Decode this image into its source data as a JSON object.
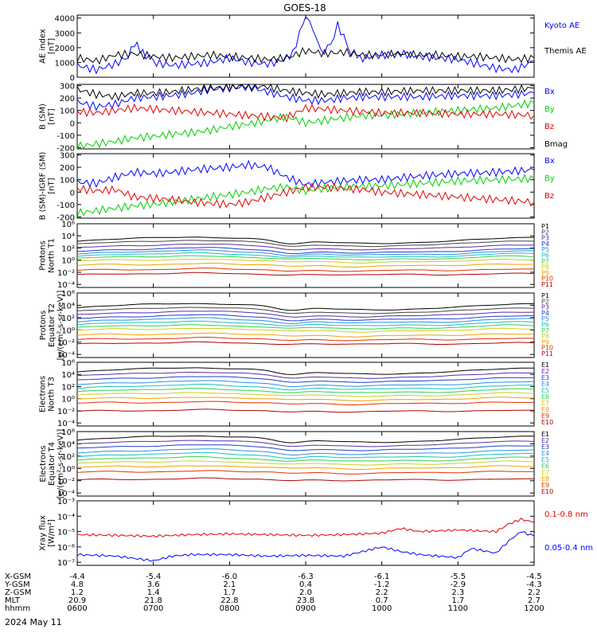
{
  "title": "GOES-18",
  "date_label": "2024 May 11",
  "colors": {
    "black": "#000000",
    "blue": "#0000ff",
    "green": "#00cc00",
    "red": "#e00000"
  },
  "chart_data": [
    {
      "type": "line",
      "ylabel": [
        "AE index",
        "[nT]"
      ],
      "yticks": [
        "0",
        "1000",
        "2000",
        "3000",
        "4000"
      ],
      "ylim": [
        0,
        4200
      ],
      "series": [
        {
          "name": "Kyoto AE",
          "color": "#0000ff",
          "x": [
            6.0,
            6.25,
            6.5,
            6.67,
            6.75,
            6.9,
            7.0,
            7.25,
            7.5,
            7.75,
            8.0,
            8.25,
            8.5,
            8.67,
            8.83,
            8.92,
            9.0,
            9.1,
            9.2,
            9.33,
            9.42,
            9.5,
            9.6,
            9.75,
            10.0,
            10.25,
            10.5,
            10.75,
            11.0,
            11.25,
            11.5,
            11.75,
            12.0
          ],
          "y": [
            800,
            500,
            900,
            1400,
            2300,
            1500,
            1000,
            800,
            900,
            1000,
            1300,
            1000,
            900,
            1100,
            1600,
            3000,
            4100,
            3300,
            1600,
            2200,
            3500,
            2700,
            1700,
            1300,
            1500,
            1600,
            1400,
            1300,
            1200,
            900,
            600,
            500,
            1100
          ]
        },
        {
          "name": "Themis AE",
          "color": "#000000",
          "x": [
            6.0,
            6.25,
            6.5,
            6.75,
            7.0,
            7.25,
            7.5,
            7.75,
            8.0,
            8.25,
            8.5,
            8.75,
            9.0,
            9.25,
            9.5,
            9.75,
            10.0,
            10.25,
            10.5,
            10.75,
            11.0,
            11.25,
            11.5,
            11.75,
            12.0
          ],
          "y": [
            1300,
            1100,
            1500,
            1600,
            1400,
            1300,
            1400,
            1500,
            1400,
            1300,
            1200,
            1300,
            1800,
            1600,
            1700,
            1500,
            1500,
            1600,
            1500,
            1500,
            1400,
            1400,
            1300,
            1200,
            1300
          ]
        }
      ]
    },
    {
      "type": "line",
      "ylabel": [
        "B (SM)",
        "[nT]"
      ],
      "yticks": [
        "-200",
        "-100",
        "0",
        "100",
        "200",
        "300"
      ],
      "ylim": [
        -210,
        310
      ],
      "series": [
        {
          "name": "Bx",
          "color": "#0000ff",
          "x": [
            6.0,
            6.25,
            6.5,
            6.75,
            7.0,
            7.25,
            7.5,
            7.75,
            8.0,
            8.25,
            8.5,
            8.75,
            9.0,
            9.25,
            9.5,
            9.75,
            10.0,
            10.5,
            11.0,
            11.5,
            12.0
          ],
          "y": [
            170,
            130,
            150,
            200,
            210,
            220,
            240,
            270,
            280,
            290,
            250,
            210,
            180,
            180,
            200,
            210,
            210,
            210,
            220,
            220,
            240
          ]
        },
        {
          "name": "By",
          "color": "#00cc00",
          "x": [
            6.0,
            6.25,
            6.5,
            6.75,
            7.0,
            7.25,
            7.5,
            7.75,
            8.0,
            8.25,
            8.5,
            8.75,
            9.0,
            9.25,
            9.5,
            9.75,
            10.0,
            10.5,
            11.0,
            11.5,
            12.0
          ],
          "y": [
            -190,
            -170,
            -150,
            -120,
            -110,
            -90,
            -80,
            -60,
            -30,
            -10,
            20,
            50,
            0,
            20,
            40,
            60,
            60,
            80,
            100,
            120,
            160
          ]
        },
        {
          "name": "Bz",
          "color": "#e00000",
          "x": [
            6.0,
            6.25,
            6.5,
            6.75,
            7.0,
            7.25,
            7.5,
            7.75,
            8.0,
            8.25,
            8.5,
            8.75,
            9.0,
            9.25,
            9.5,
            9.75,
            10.0,
            10.5,
            11.0,
            11.5,
            12.0
          ],
          "y": [
            90,
            80,
            100,
            120,
            110,
            100,
            90,
            80,
            70,
            60,
            50,
            40,
            120,
            110,
            100,
            90,
            80,
            80,
            70,
            70,
            60
          ]
        },
        {
          "name": "Bmag",
          "color": "#000000",
          "x": [
            6.0,
            6.25,
            6.5,
            6.75,
            7.0,
            7.25,
            7.5,
            7.75,
            8.0,
            8.25,
            8.5,
            8.75,
            9.0,
            9.25,
            9.5,
            9.75,
            10.0,
            10.5,
            11.0,
            11.5,
            12.0
          ],
          "y": [
            270,
            230,
            210,
            240,
            240,
            250,
            270,
            280,
            290,
            300,
            290,
            260,
            240,
            230,
            240,
            250,
            250,
            260,
            260,
            260,
            280
          ]
        }
      ]
    },
    {
      "type": "line",
      "ylabel": [
        "B (SM)-IGRF (SM)",
        "[nT]"
      ],
      "yticks": [
        "-200",
        "-100",
        "0",
        "100",
        "200",
        "300"
      ],
      "ylim": [
        -210,
        310
      ],
      "series": [
        {
          "name": "Bx",
          "color": "#0000ff",
          "x": [
            6.0,
            6.25,
            6.5,
            6.75,
            7.0,
            7.25,
            7.5,
            7.75,
            8.0,
            8.25,
            8.5,
            8.75,
            9.0,
            9.25,
            9.5,
            9.75,
            10.0,
            10.5,
            11.0,
            11.5,
            12.0
          ],
          "y": [
            80,
            70,
            120,
            160,
            150,
            160,
            180,
            190,
            200,
            220,
            200,
            120,
            60,
            80,
            90,
            100,
            100,
            130,
            150,
            160,
            180
          ]
        },
        {
          "name": "By",
          "color": "#00cc00",
          "x": [
            6.0,
            6.25,
            6.5,
            6.75,
            7.0,
            7.25,
            7.5,
            7.75,
            8.0,
            8.25,
            8.5,
            8.75,
            9.0,
            9.25,
            9.5,
            9.75,
            10.0,
            10.5,
            11.0,
            11.5,
            12.0
          ],
          "y": [
            -170,
            -150,
            -130,
            -110,
            -100,
            -80,
            -60,
            -40,
            -20,
            0,
            30,
            40,
            10,
            30,
            40,
            50,
            50,
            70,
            90,
            100,
            110
          ]
        },
        {
          "name": "Bz",
          "color": "#e00000",
          "x": [
            6.0,
            6.25,
            6.5,
            6.75,
            7.0,
            7.25,
            7.5,
            7.75,
            8.0,
            8.25,
            8.5,
            8.75,
            9.0,
            9.25,
            9.5,
            9.75,
            10.0,
            10.5,
            11.0,
            11.5,
            12.0
          ],
          "y": [
            30,
            10,
            20,
            -40,
            -50,
            -60,
            -80,
            -90,
            -100,
            -80,
            -40,
            0,
            40,
            40,
            30,
            20,
            0,
            -20,
            -40,
            -60,
            -80
          ]
        }
      ]
    },
    {
      "type": "line",
      "log": true,
      "ylabel": [
        "Protons",
        "North T1"
      ],
      "yticks": [
        "10⁻⁴",
        "10⁻²",
        "10⁰",
        "10²",
        "10⁴",
        "10⁶"
      ],
      "ylim_exp": [
        -4.5,
        6
      ],
      "series": [
        {
          "name": "P1",
          "color": "#000000",
          "level": 3.3
        },
        {
          "name": "P2",
          "color": "#444444",
          "level": 2.8
        },
        {
          "name": "P3",
          "color": "#5a2ea0",
          "level": 2.2
        },
        {
          "name": "P4",
          "color": "#1a3ecc",
          "level": 1.6
        },
        {
          "name": "P5",
          "color": "#2a8fe0",
          "level": 1.2
        },
        {
          "name": "P6",
          "color": "#18c0c0",
          "level": 0.8
        },
        {
          "name": "P7",
          "color": "#30d050",
          "level": 0.4
        },
        {
          "name": "P8",
          "color": "#c8d020",
          "level": -0.1
        },
        {
          "name": "P9",
          "color": "#f0a000",
          "level": -0.8
        },
        {
          "name": "P10",
          "color": "#e03000",
          "level": -1.6
        },
        {
          "name": "P11",
          "color": "#b00000",
          "level": -2.3
        }
      ]
    },
    {
      "type": "line",
      "log": true,
      "ylabel": [
        "Protons",
        "Equator T2",
        "[p/(cm²-s-sr-keV)]"
      ],
      "yticks": [
        "10⁻⁴",
        "10⁻²",
        "10⁰",
        "10²",
        "10⁴",
        "10⁶"
      ],
      "ylim_exp": [
        -4.5,
        6
      ],
      "series": [
        {
          "name": "P1",
          "color": "#000000",
          "level": 3.8
        },
        {
          "name": "P2",
          "color": "#444444",
          "level": 3.2
        },
        {
          "name": "P3",
          "color": "#5a2ea0",
          "level": 2.6
        },
        {
          "name": "P4",
          "color": "#1a3ecc",
          "level": 2.0
        },
        {
          "name": "P5",
          "color": "#2a8fe0",
          "level": 1.5
        },
        {
          "name": "P6",
          "color": "#18c0c0",
          "level": 1.0
        },
        {
          "name": "P7",
          "color": "#30d050",
          "level": 0.5
        },
        {
          "name": "P8",
          "color": "#c8d020",
          "level": 0.0
        },
        {
          "name": "P9",
          "color": "#f0a000",
          "level": -0.8
        },
        {
          "name": "P10",
          "color": "#e03000",
          "level": -1.5
        },
        {
          "name": "P11",
          "color": "#b00000",
          "level": -2.2
        }
      ]
    },
    {
      "type": "line",
      "log": true,
      "ylabel": [
        "Electrons",
        "North T3"
      ],
      "yticks": [
        "10⁻⁴",
        "10⁻²",
        "10⁰",
        "10²",
        "10⁴",
        "10⁶"
      ],
      "ylim_exp": [
        -4.5,
        6
      ],
      "series": [
        {
          "name": "E1",
          "color": "#000000",
          "level": 4.6
        },
        {
          "name": "E2",
          "color": "#5a2ea0",
          "level": 3.9
        },
        {
          "name": "E3",
          "color": "#1a3ecc",
          "level": 3.2
        },
        {
          "name": "E4",
          "color": "#2a8fe0",
          "level": 2.5
        },
        {
          "name": "E5",
          "color": "#18c0c0",
          "level": 1.9
        },
        {
          "name": "E6",
          "color": "#30d050",
          "level": 1.3
        },
        {
          "name": "E7",
          "color": "#c8d020",
          "level": 0.7
        },
        {
          "name": "E8",
          "color": "#f0a000",
          "level": 0.0
        },
        {
          "name": "E9",
          "color": "#e03000",
          "level": -0.7
        },
        {
          "name": "E10",
          "color": "#b00000",
          "level": -2.0
        }
      ]
    },
    {
      "type": "line",
      "log": true,
      "ylabel": [
        "Electrons",
        "Equator T4",
        "[e/(cm²-s-sr-keV)]"
      ],
      "yticks": [
        "10⁻⁴",
        "10⁻²",
        "10⁰",
        "10²",
        "10⁴",
        "10⁶"
      ],
      "ylim_exp": [
        -4.5,
        6
      ],
      "series": [
        {
          "name": "E1",
          "color": "#000000",
          "level": 4.8
        },
        {
          "name": "E2",
          "color": "#5a2ea0",
          "level": 4.1
        },
        {
          "name": "E3",
          "color": "#1a3ecc",
          "level": 3.4
        },
        {
          "name": "E4",
          "color": "#2a8fe0",
          "level": 2.7
        },
        {
          "name": "E5",
          "color": "#18c0c0",
          "level": 2.1
        },
        {
          "name": "E6",
          "color": "#30d050",
          "level": 1.5
        },
        {
          "name": "E7",
          "color": "#c8d020",
          "level": 0.9
        },
        {
          "name": "E8",
          "color": "#f0a000",
          "level": 0.2
        },
        {
          "name": "E9",
          "color": "#e03000",
          "level": -0.6
        },
        {
          "name": "E10",
          "color": "#b00000",
          "level": -1.8
        }
      ]
    },
    {
      "type": "line",
      "log": true,
      "ylabel": [
        "Xray flux",
        "[W/m²]"
      ],
      "yticks": [
        "10⁻⁷",
        "10⁻⁶",
        "10⁻⁵",
        "10⁻⁴",
        "10⁻³"
      ],
      "ylim_exp": [
        -7.2,
        -3
      ],
      "series": [
        {
          "name": "0.1-0.8 nm",
          "color": "#e00000",
          "x": [
            6.0,
            6.5,
            7.0,
            7.5,
            8.0,
            8.5,
            9.0,
            9.5,
            10.0,
            10.25,
            10.5,
            11.0,
            11.5,
            11.67,
            11.83,
            12.0
          ],
          "y": [
            -5.2,
            -5.25,
            -5.3,
            -5.2,
            -5.15,
            -5.2,
            -5.25,
            -5.2,
            -5.1,
            -4.8,
            -5.0,
            -4.9,
            -5.0,
            -4.5,
            -4.2,
            -4.4
          ]
        },
        {
          "name": "0.05-0.4 nm",
          "color": "#0000ff",
          "x": [
            6.0,
            6.5,
            7.0,
            7.25,
            7.5,
            8.0,
            8.5,
            9.0,
            9.5,
            9.83,
            10.0,
            10.25,
            10.5,
            11.0,
            11.17,
            11.5,
            11.67,
            11.83,
            12.0
          ],
          "y": [
            -6.5,
            -6.6,
            -6.9,
            -6.6,
            -6.5,
            -6.5,
            -6.6,
            -6.55,
            -6.6,
            -6.2,
            -6.0,
            -6.3,
            -6.5,
            -6.7,
            -6.1,
            -6.4,
            -5.6,
            -5.0,
            -5.3
          ]
        }
      ]
    }
  ],
  "x_axis": {
    "ticks": [
      "0600",
      "0700",
      "0800",
      "0900",
      "1000",
      "1100",
      "1200"
    ],
    "rows": [
      {
        "label": "X-GSM",
        "values": [
          "-4.4",
          "-5.4",
          "-6.0",
          "-6.3",
          "-6.1",
          "-5.5",
          "-4.5"
        ]
      },
      {
        "label": "Y-GSM",
        "values": [
          "4.8",
          "3.6",
          "2.1",
          "0.4",
          "-1.2",
          "-2.9",
          "-4.3"
        ]
      },
      {
        "label": "Z-GSM",
        "values": [
          "1.2",
          "1.4",
          "1.7",
          "2.0",
          "2.2",
          "2.3",
          "2.2"
        ]
      },
      {
        "label": "MLT",
        "values": [
          "20.9",
          "21.8",
          "22.8",
          "23.8",
          "0.7",
          "1.7",
          "2.7"
        ]
      },
      {
        "label": "hhmm",
        "values": [
          "0600",
          "0700",
          "0800",
          "0900",
          "1000",
          "1100",
          "1200"
        ]
      }
    ]
  }
}
